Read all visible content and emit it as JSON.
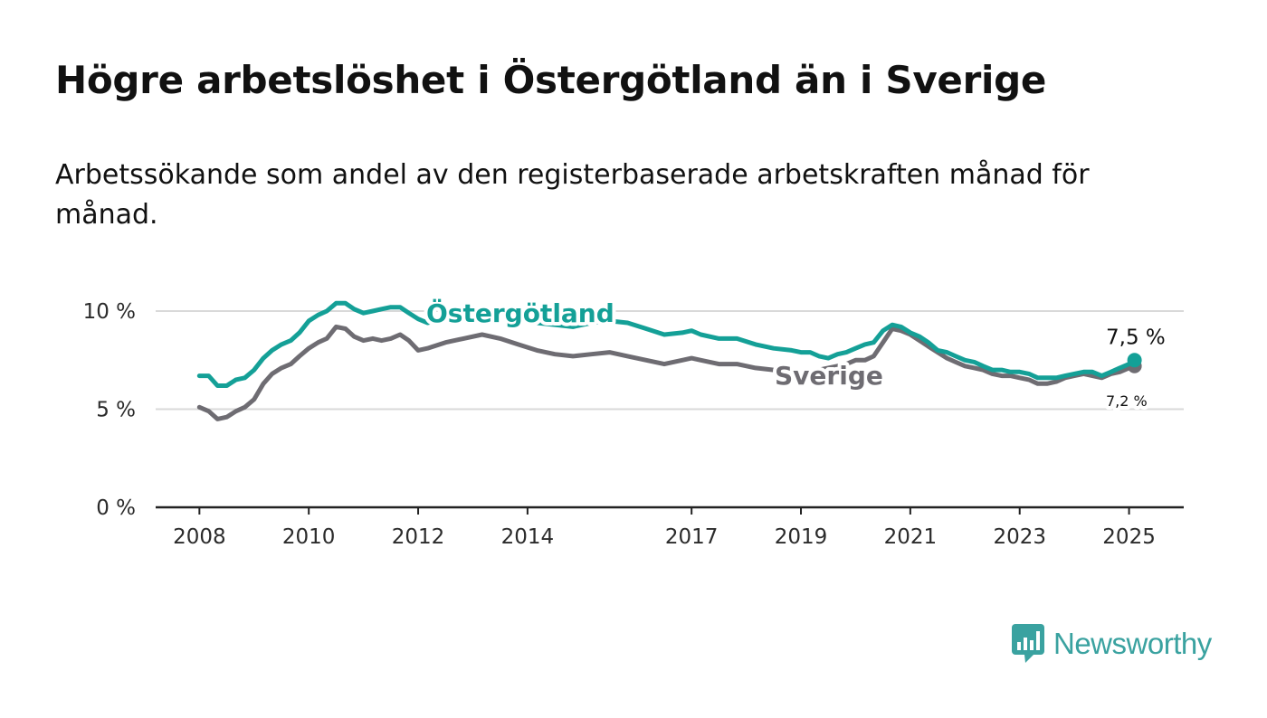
{
  "title": "Högre arbetslöshet i Östergötland än i Sverige",
  "subtitle": "Arbetssökande som andel av den registerbaserade arbetskraften månad för månad.",
  "logo": {
    "text": "Newsworthy",
    "icon": "bar-chart-speech-bubble-icon",
    "color": "#3aa2a0"
  },
  "colors": {
    "ostergotland": "#14a097",
    "sverige": "#6e6c72",
    "grid": "#d9d9d9",
    "axis": "#222222"
  },
  "chart_data": {
    "type": "line",
    "title": "Högre arbetslöshet i Östergötland än i Sverige",
    "subtitle": "Arbetssökande som andel av den registerbaserade arbetskraften månad för månad.",
    "xlabel": "",
    "ylabel": "",
    "x_range": [
      2007.2,
      2026.0
    ],
    "ylim": [
      0,
      10
    ],
    "y_ticks": [
      0,
      5,
      10
    ],
    "y_tick_labels": [
      "0 %",
      "5 %",
      "10 %"
    ],
    "x_ticks": [
      2008,
      2010,
      2012,
      2014,
      2017,
      2019,
      2021,
      2023,
      2025
    ],
    "x_tick_labels": [
      "2008",
      "2010",
      "2012",
      "2014",
      "2017",
      "2019",
      "2021",
      "2023",
      "2025"
    ],
    "grid": true,
    "legend": "inline labels",
    "series": [
      {
        "name": "Östergötland",
        "color": "#14a097",
        "end_label": "7,5 %",
        "points": [
          [
            2008.0,
            6.7
          ],
          [
            2008.17,
            6.7
          ],
          [
            2008.33,
            6.2
          ],
          [
            2008.5,
            6.2
          ],
          [
            2008.67,
            6.5
          ],
          [
            2008.83,
            6.6
          ],
          [
            2009.0,
            7.0
          ],
          [
            2009.17,
            7.6
          ],
          [
            2009.33,
            8.0
          ],
          [
            2009.5,
            8.3
          ],
          [
            2009.67,
            8.5
          ],
          [
            2009.83,
            8.9
          ],
          [
            2010.0,
            9.5
          ],
          [
            2010.17,
            9.8
          ],
          [
            2010.33,
            10.0
          ],
          [
            2010.5,
            10.4
          ],
          [
            2010.67,
            10.4
          ],
          [
            2010.83,
            10.1
          ],
          [
            2011.0,
            9.9
          ],
          [
            2011.17,
            10.0
          ],
          [
            2011.33,
            10.1
          ],
          [
            2011.5,
            10.2
          ],
          [
            2011.67,
            10.2
          ],
          [
            2011.83,
            9.9
          ],
          [
            2012.0,
            9.6
          ],
          [
            2012.17,
            9.4
          ],
          [
            2012.5,
            9.6
          ],
          [
            2012.83,
            9.9
          ],
          [
            2013.17,
            10.1
          ],
          [
            2013.5,
            10.0
          ],
          [
            2013.83,
            9.6
          ],
          [
            2014.17,
            9.4
          ],
          [
            2014.5,
            9.3
          ],
          [
            2014.83,
            9.2
          ],
          [
            2015.17,
            9.4
          ],
          [
            2015.5,
            9.5
          ],
          [
            2015.83,
            9.4
          ],
          [
            2016.17,
            9.1
          ],
          [
            2016.5,
            8.8
          ],
          [
            2016.83,
            8.9
          ],
          [
            2017.0,
            9.0
          ],
          [
            2017.17,
            8.8
          ],
          [
            2017.5,
            8.6
          ],
          [
            2017.83,
            8.6
          ],
          [
            2018.17,
            8.3
          ],
          [
            2018.5,
            8.1
          ],
          [
            2018.83,
            8.0
          ],
          [
            2019.0,
            7.9
          ],
          [
            2019.17,
            7.9
          ],
          [
            2019.33,
            7.7
          ],
          [
            2019.5,
            7.6
          ],
          [
            2019.67,
            7.8
          ],
          [
            2019.83,
            7.9
          ],
          [
            2020.0,
            8.1
          ],
          [
            2020.17,
            8.3
          ],
          [
            2020.33,
            8.4
          ],
          [
            2020.5,
            9.0
          ],
          [
            2020.67,
            9.3
          ],
          [
            2020.83,
            9.2
          ],
          [
            2021.0,
            8.9
          ],
          [
            2021.17,
            8.7
          ],
          [
            2021.33,
            8.4
          ],
          [
            2021.5,
            8.0
          ],
          [
            2021.67,
            7.9
          ],
          [
            2021.83,
            7.7
          ],
          [
            2022.0,
            7.5
          ],
          [
            2022.17,
            7.4
          ],
          [
            2022.33,
            7.2
          ],
          [
            2022.5,
            7.0
          ],
          [
            2022.67,
            7.0
          ],
          [
            2022.83,
            6.9
          ],
          [
            2023.0,
            6.9
          ],
          [
            2023.17,
            6.8
          ],
          [
            2023.33,
            6.6
          ],
          [
            2023.5,
            6.6
          ],
          [
            2023.67,
            6.6
          ],
          [
            2023.83,
            6.7
          ],
          [
            2024.0,
            6.8
          ],
          [
            2024.17,
            6.9
          ],
          [
            2024.33,
            6.9
          ],
          [
            2024.5,
            6.7
          ],
          [
            2024.67,
            6.9
          ],
          [
            2024.83,
            7.1
          ],
          [
            2025.0,
            7.3
          ],
          [
            2025.1,
            7.5
          ]
        ]
      },
      {
        "name": "Sverige",
        "color": "#6e6c72",
        "end_label": "7,2 %",
        "points": [
          [
            2008.0,
            5.1
          ],
          [
            2008.17,
            4.9
          ],
          [
            2008.33,
            4.5
          ],
          [
            2008.5,
            4.6
          ],
          [
            2008.67,
            4.9
          ],
          [
            2008.83,
            5.1
          ],
          [
            2009.0,
            5.5
          ],
          [
            2009.17,
            6.3
          ],
          [
            2009.33,
            6.8
          ],
          [
            2009.5,
            7.1
          ],
          [
            2009.67,
            7.3
          ],
          [
            2009.83,
            7.7
          ],
          [
            2010.0,
            8.1
          ],
          [
            2010.17,
            8.4
          ],
          [
            2010.33,
            8.6
          ],
          [
            2010.5,
            9.2
          ],
          [
            2010.67,
            9.1
          ],
          [
            2010.83,
            8.7
          ],
          [
            2011.0,
            8.5
          ],
          [
            2011.17,
            8.6
          ],
          [
            2011.33,
            8.5
          ],
          [
            2011.5,
            8.6
          ],
          [
            2011.67,
            8.8
          ],
          [
            2011.83,
            8.5
          ],
          [
            2012.0,
            8.0
          ],
          [
            2012.17,
            8.1
          ],
          [
            2012.5,
            8.4
          ],
          [
            2012.83,
            8.6
          ],
          [
            2013.17,
            8.8
          ],
          [
            2013.5,
            8.6
          ],
          [
            2013.83,
            8.3
          ],
          [
            2014.17,
            8.0
          ],
          [
            2014.5,
            7.8
          ],
          [
            2014.83,
            7.7
          ],
          [
            2015.17,
            7.8
          ],
          [
            2015.5,
            7.9
          ],
          [
            2015.83,
            7.7
          ],
          [
            2016.17,
            7.5
          ],
          [
            2016.5,
            7.3
          ],
          [
            2016.83,
            7.5
          ],
          [
            2017.0,
            7.6
          ],
          [
            2017.17,
            7.5
          ],
          [
            2017.5,
            7.3
          ],
          [
            2017.83,
            7.3
          ],
          [
            2018.17,
            7.1
          ],
          [
            2018.5,
            7.0
          ],
          [
            2018.83,
            6.9
          ],
          [
            2019.0,
            6.8
          ],
          [
            2019.17,
            6.9
          ],
          [
            2019.33,
            7.0
          ],
          [
            2019.5,
            7.1
          ],
          [
            2019.67,
            7.2
          ],
          [
            2019.83,
            7.3
          ],
          [
            2020.0,
            7.5
          ],
          [
            2020.17,
            7.5
          ],
          [
            2020.33,
            7.7
          ],
          [
            2020.5,
            8.4
          ],
          [
            2020.67,
            9.1
          ],
          [
            2020.83,
            9.0
          ],
          [
            2021.0,
            8.8
          ],
          [
            2021.17,
            8.5
          ],
          [
            2021.33,
            8.2
          ],
          [
            2021.5,
            7.9
          ],
          [
            2021.67,
            7.6
          ],
          [
            2021.83,
            7.4
          ],
          [
            2022.0,
            7.2
          ],
          [
            2022.17,
            7.1
          ],
          [
            2022.33,
            7.0
          ],
          [
            2022.5,
            6.8
          ],
          [
            2022.67,
            6.7
          ],
          [
            2022.83,
            6.7
          ],
          [
            2023.0,
            6.6
          ],
          [
            2023.17,
            6.5
          ],
          [
            2023.33,
            6.3
          ],
          [
            2023.5,
            6.3
          ],
          [
            2023.67,
            6.4
          ],
          [
            2023.83,
            6.6
          ],
          [
            2024.0,
            6.7
          ],
          [
            2024.17,
            6.8
          ],
          [
            2024.33,
            6.7
          ],
          [
            2024.5,
            6.6
          ],
          [
            2024.67,
            6.8
          ],
          [
            2024.83,
            6.9
          ],
          [
            2025.0,
            7.1
          ],
          [
            2025.1,
            7.2
          ]
        ]
      }
    ]
  }
}
